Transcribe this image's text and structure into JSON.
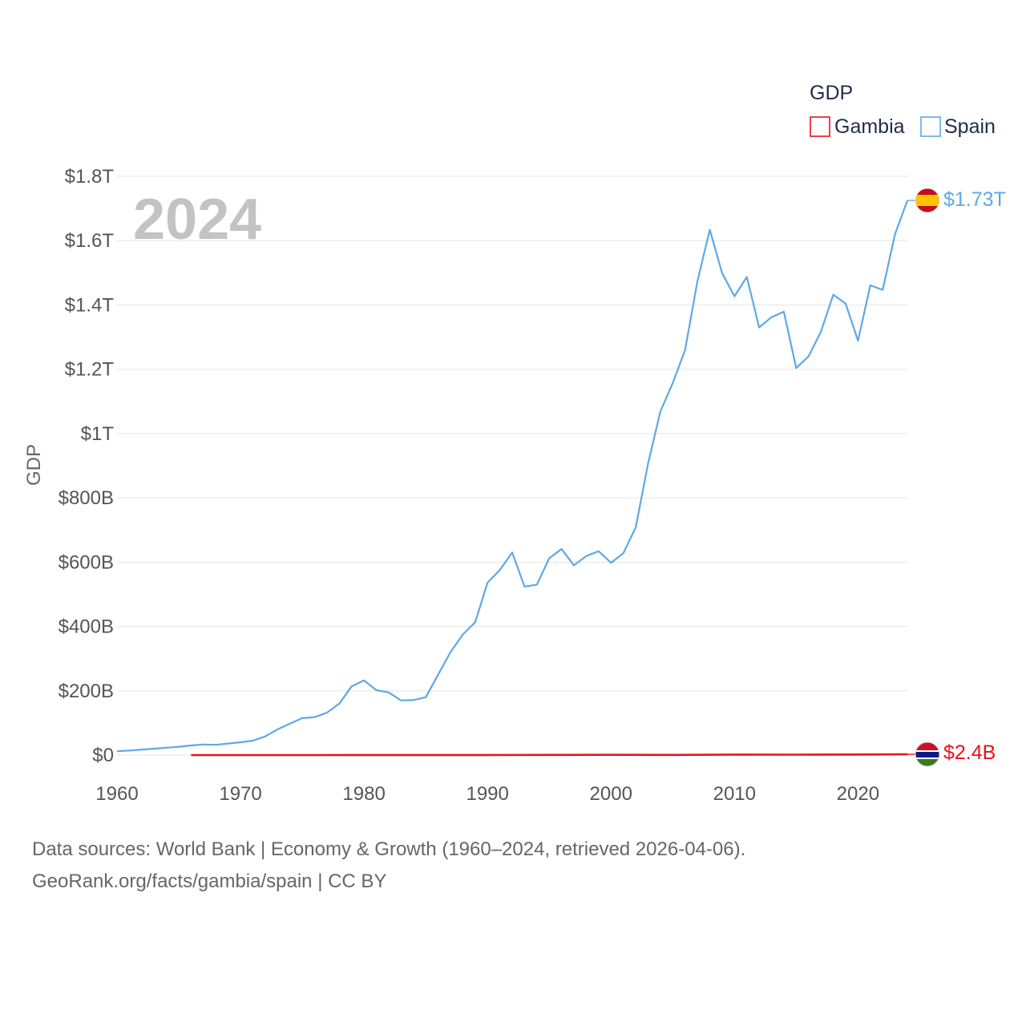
{
  "chart_data": {
    "type": "line",
    "title": "",
    "year_label": "2024",
    "xlabel": "",
    "ylabel": "GDP",
    "xlim": [
      1960,
      2024
    ],
    "ylim": [
      0,
      1800000000000
    ],
    "x_ticks": [
      {
        "value": 1960,
        "label": "1960"
      },
      {
        "value": 1970,
        "label": "1970"
      },
      {
        "value": 1980,
        "label": "1980"
      },
      {
        "value": 1990,
        "label": "1990"
      },
      {
        "value": 2000,
        "label": "2000"
      },
      {
        "value": 2010,
        "label": "2010"
      },
      {
        "value": 2020,
        "label": "2020"
      }
    ],
    "y_ticks": [
      {
        "value": 0,
        "label": "$0"
      },
      {
        "value": 200000000000,
        "label": "$200B"
      },
      {
        "value": 400000000000,
        "label": "$400B"
      },
      {
        "value": 600000000000,
        "label": "$600B"
      },
      {
        "value": 800000000000,
        "label": "$800B"
      },
      {
        "value": 1000000000000,
        "label": "$1T"
      },
      {
        "value": 1200000000000,
        "label": "$1.2T"
      },
      {
        "value": 1400000000000,
        "label": "$1.4T"
      },
      {
        "value": 1600000000000,
        "label": "$1.6T"
      },
      {
        "value": 1800000000000,
        "label": "$1.8T"
      }
    ],
    "legend": {
      "title": "GDP",
      "position": "top-right"
    },
    "series": [
      {
        "name": "Gambia",
        "color": "#e8131b",
        "end_label": "$2.4B",
        "flag": "gambia-flag",
        "x": [
          1966,
          1970,
          1975,
          1980,
          1985,
          1990,
          1995,
          2000,
          2005,
          2010,
          2015,
          2020,
          2024
        ],
        "values": [
          40000000,
          50000000,
          100000000,
          240000000,
          250000000,
          320000000,
          380000000,
          780000000,
          620000000,
          1540000000,
          1370000000,
          1810000000,
          2400000000
        ]
      },
      {
        "name": "Spain",
        "color": "#5fa8e6",
        "end_label": "$1.73T",
        "flag": "spain-flag",
        "x": [
          1960,
          1961,
          1962,
          1963,
          1964,
          1965,
          1966,
          1967,
          1968,
          1969,
          1970,
          1971,
          1972,
          1973,
          1974,
          1975,
          1976,
          1977,
          1978,
          1979,
          1980,
          1981,
          1982,
          1983,
          1984,
          1985,
          1986,
          1987,
          1988,
          1989,
          1990,
          1991,
          1992,
          1993,
          1994,
          1995,
          1996,
          1997,
          1998,
          1999,
          2000,
          2001,
          2002,
          2003,
          2004,
          2005,
          2006,
          2007,
          2008,
          2009,
          2010,
          2011,
          2012,
          2013,
          2014,
          2015,
          2016,
          2017,
          2018,
          2019,
          2020,
          2021,
          2022,
          2023,
          2024
        ],
        "values": [
          12000000000,
          14000000000,
          17000000000,
          20000000000,
          23000000000,
          26000000000,
          30000000000,
          33000000000,
          32000000000,
          36000000000,
          40000000000,
          45000000000,
          58000000000,
          80000000000,
          98000000000,
          115000000000,
          118000000000,
          132000000000,
          160000000000,
          214000000000,
          232000000000,
          202000000000,
          195000000000,
          170000000000,
          171000000000,
          180000000000,
          250000000000,
          320000000000,
          375000000000,
          413000000000,
          536000000000,
          576000000000,
          630000000000,
          524000000000,
          530000000000,
          612000000000,
          641000000000,
          590000000000,
          619000000000,
          634000000000,
          598000000000,
          628000000000,
          708000000000,
          907000000000,
          1069000000000,
          1157000000000,
          1260000000000,
          1474000000000,
          1634000000000,
          1499000000000,
          1427000000000,
          1487000000000,
          1330000000000,
          1362000000000,
          1379000000000,
          1204000000000,
          1240000000000,
          1317000000000,
          1432000000000,
          1404000000000,
          1289000000000,
          1461000000000,
          1447000000000,
          1620000000000,
          1725000000000
        ]
      }
    ]
  },
  "source": {
    "line1": "Data sources: World Bank | Economy & Growth (1960–2024, retrieved 2026-04-06).",
    "line2": "GeoRank.org/facts/gambia/spain | CC BY"
  }
}
